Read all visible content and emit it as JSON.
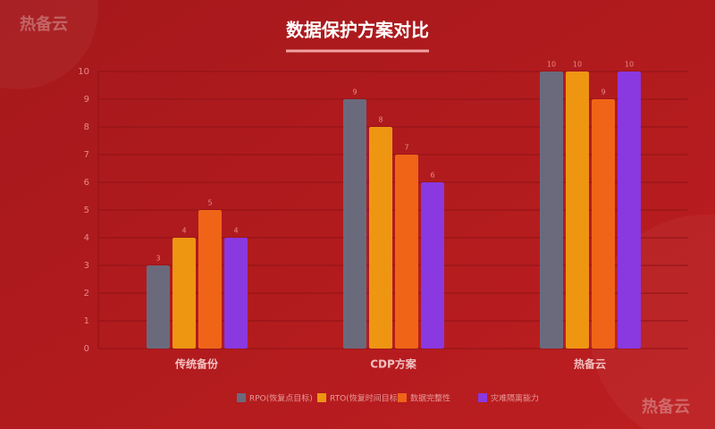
{
  "chart_data": {
    "type": "bar",
    "title": "数据保护方案对比",
    "watermarks": [
      "热备云",
      "热备云"
    ],
    "categories": [
      "传统备份",
      "CDP方案",
      "热备云"
    ],
    "series": [
      {
        "name": "RPO(恢复点目标)",
        "color": "#6b6a7d",
        "values": [
          3,
          9,
          10
        ]
      },
      {
        "name": "RTO(恢复时间目标)",
        "color": "#ee9512",
        "values": [
          4,
          8,
          10
        ]
      },
      {
        "name": "数据完整性",
        "color": "#f06418",
        "values": [
          5,
          7,
          9
        ]
      },
      {
        "name": "灾难隔离能力",
        "color": "#8a38df",
        "values": [
          4,
          6,
          10
        ]
      }
    ],
    "ylim": [
      0,
      10
    ],
    "yticks": [
      0,
      1,
      2,
      3,
      4,
      5,
      6,
      7,
      8,
      9,
      10
    ],
    "grid": true,
    "legend": "bottom"
  }
}
